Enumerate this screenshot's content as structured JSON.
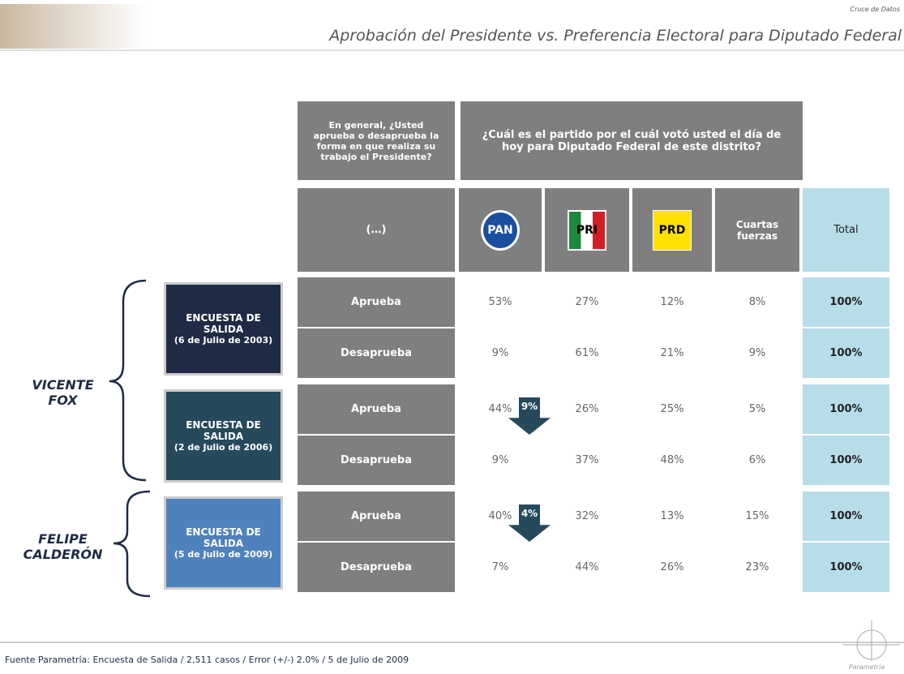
{
  "header": {
    "section": "Cruce de Datos",
    "title": "Aprobación del Presidente  vs. Preferencia Electoral para Diputado Federal"
  },
  "table": {
    "question_approval": "En general, ¿Usted aprueba o desaprueba la forma en que realiza su trabajo el Presidente?",
    "question_vote": "¿Cuál es el partido por el cuál votó usted el día de hoy para Diputado Federal de este distrito?",
    "answer_header": "(…)",
    "parties": [
      "PAN",
      "PRI",
      "PRD"
    ],
    "other": "Cuartas fuerzas",
    "total": "Total",
    "presidents": [
      {
        "name": "VICENTE FOX",
        "surveys": [
          {
            "label": "ENCUESTA DE SALIDA",
            "date": "(6 de Julio de 2003)",
            "rows": [
              {
                "answer": "Aprueba",
                "cells": [
                  "53%",
                  "27%",
                  "12%",
                  "8%",
                  "100%"
                ]
              },
              {
                "answer": "Desaprueba",
                "cells": [
                  "9%",
                  "61%",
                  "21%",
                  "9%",
                  "100%"
                ]
              }
            ]
          },
          {
            "label": "ENCUESTA DE SALIDA",
            "date": "(2 de Julio de 2006)",
            "change": "9%",
            "rows": [
              {
                "answer": "Aprueba",
                "cells": [
                  "44%",
                  "26%",
                  "25%",
                  "5%",
                  "100%"
                ]
              },
              {
                "answer": "Desaprueba",
                "cells": [
                  "9%",
                  "37%",
                  "48%",
                  "6%",
                  "100%"
                ]
              }
            ]
          }
        ]
      },
      {
        "name": "FELIPE CALDERÓN",
        "surveys": [
          {
            "label": "ENCUESTA DE SALIDA",
            "date": "(5 de Julio de 2009)",
            "change": "4%",
            "rows": [
              {
                "answer": "Aprueba",
                "cells": [
                  "40%",
                  "32%",
                  "13%",
                  "15%",
                  "100%"
                ]
              },
              {
                "answer": "Desaprueba",
                "cells": [
                  "7%",
                  "44%",
                  "26%",
                  "23%",
                  "100%"
                ]
              }
            ]
          }
        ]
      }
    ]
  },
  "footer": {
    "source": "Fuente Parametría: Encuesta de Salida / 2,511 casos / Error (+/-) 2.0% / 5 de Julio de 2009",
    "brand": "Parametría"
  }
}
